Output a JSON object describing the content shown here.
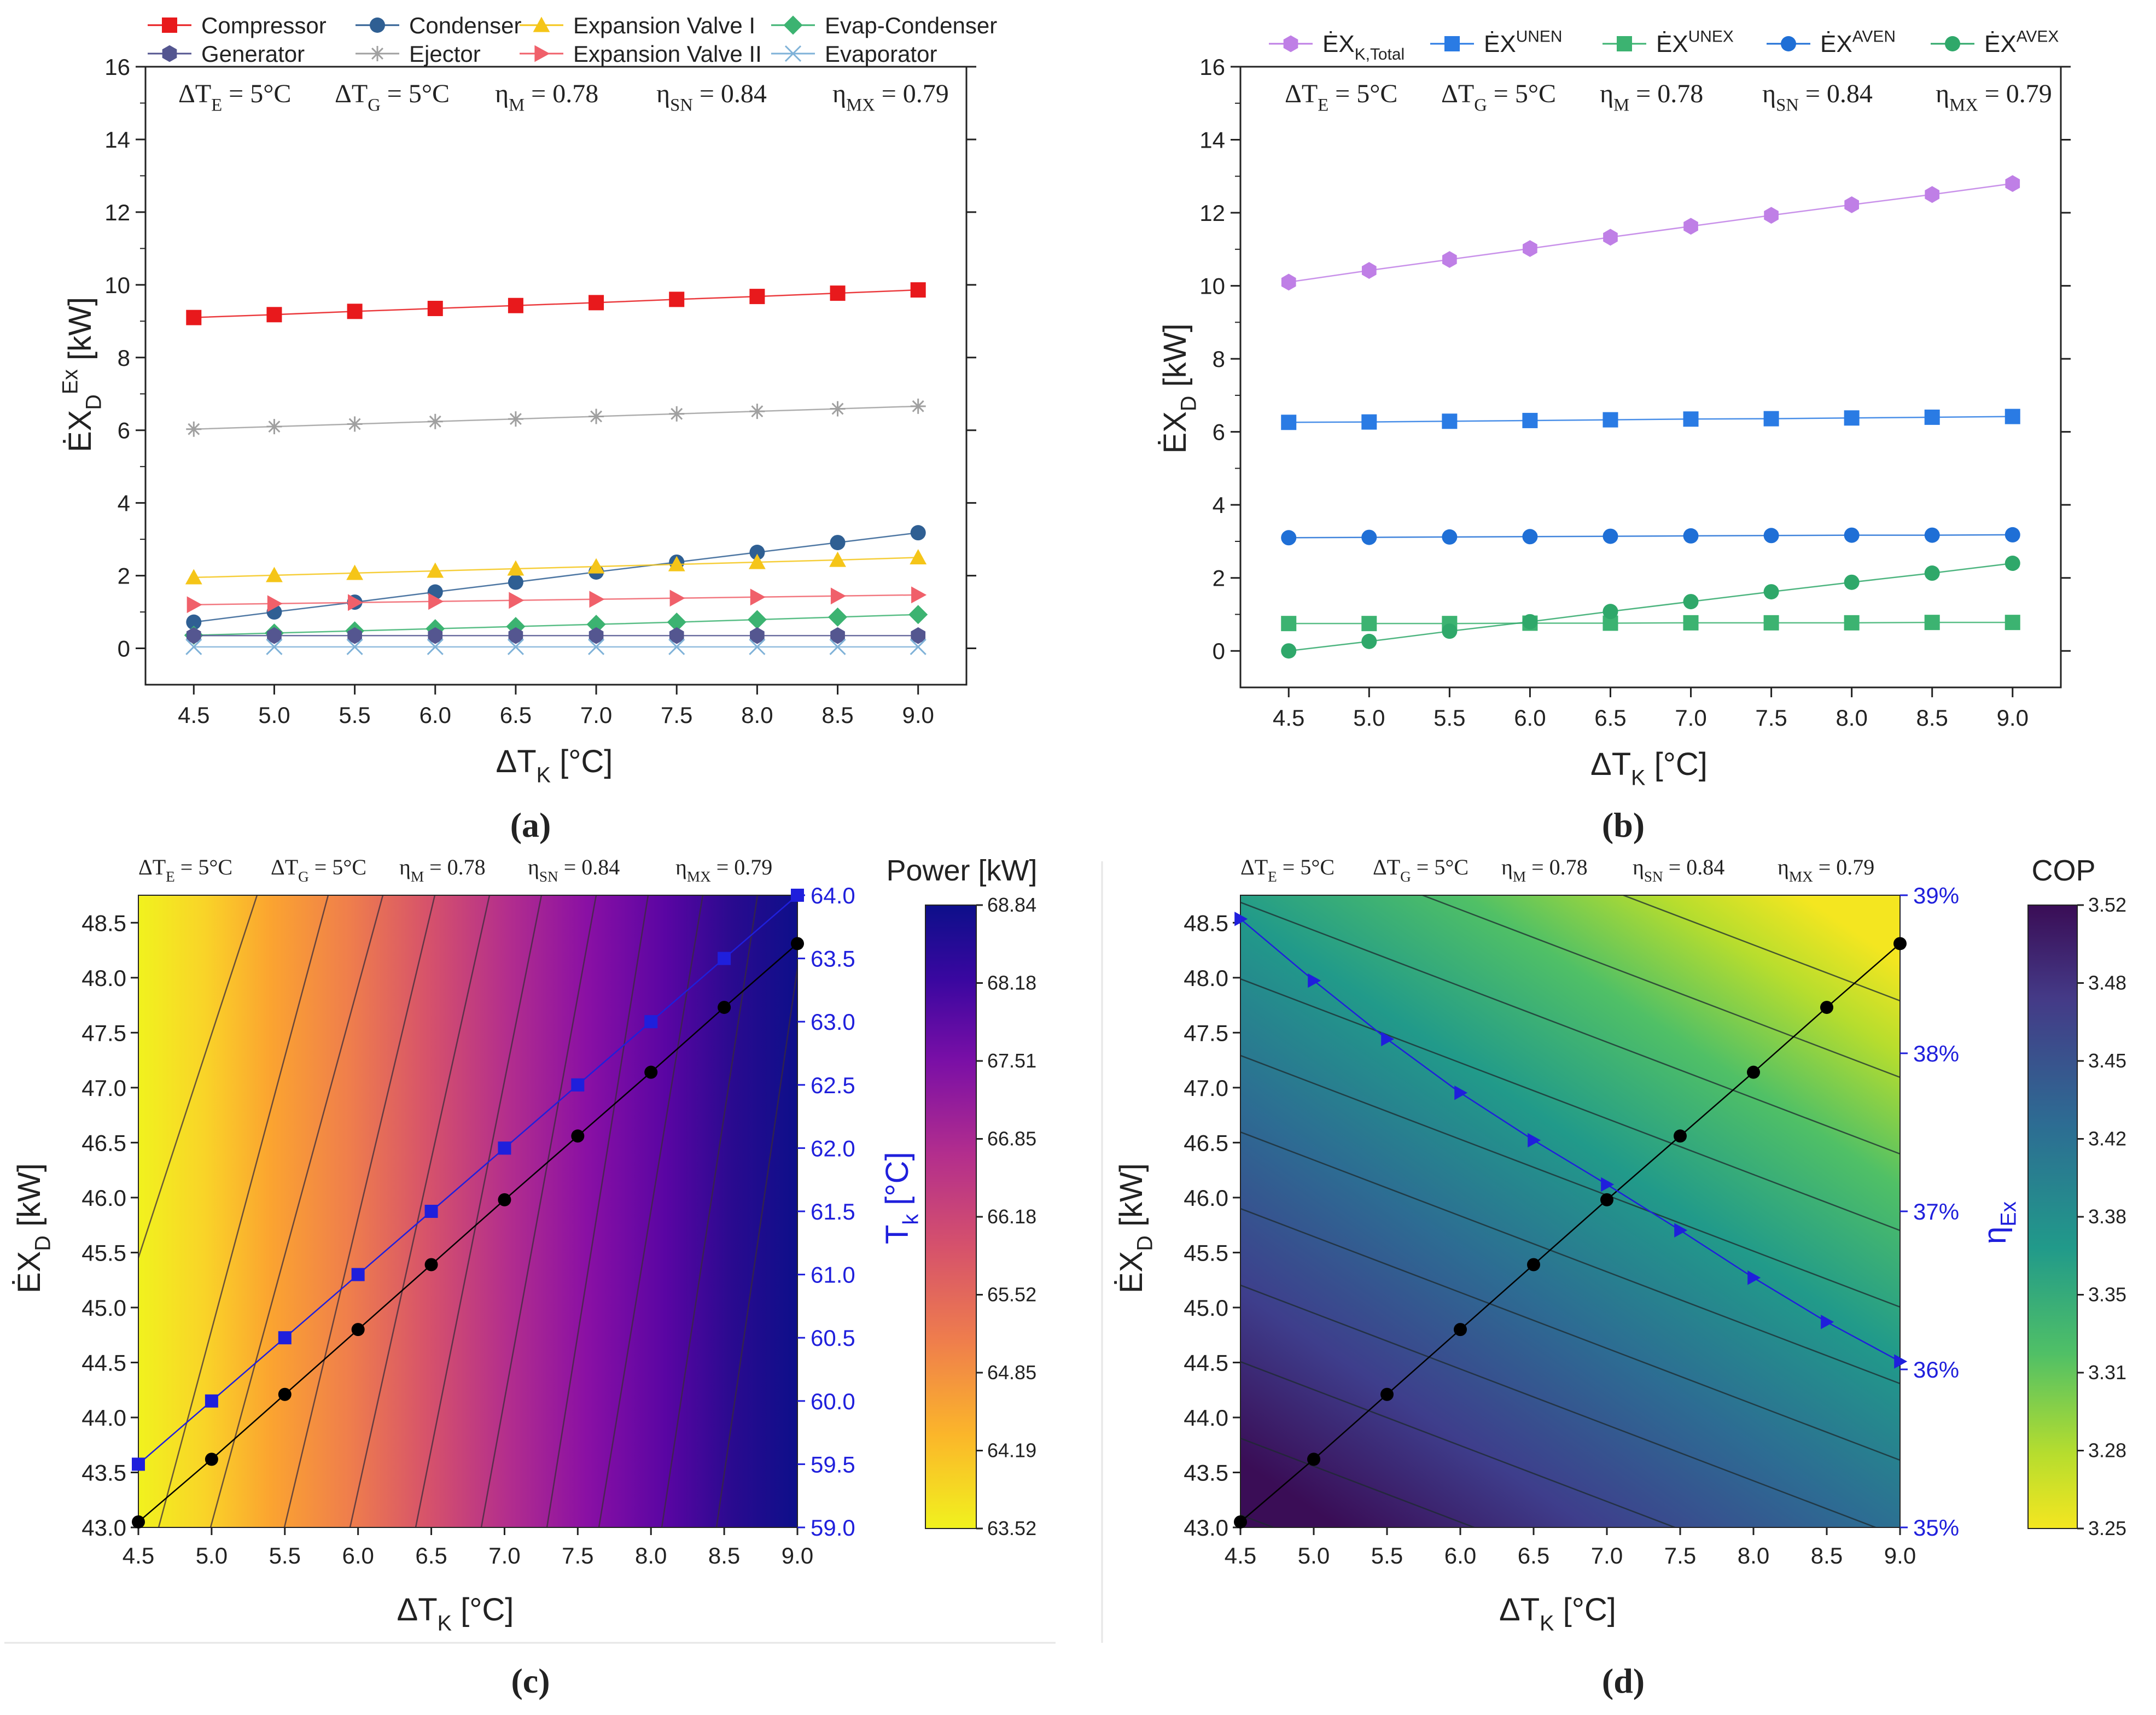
{
  "figure": {
    "panel_labels": [
      "(a)",
      "(b)",
      "(c)",
      "(d)"
    ],
    "x_values": [
      4.5,
      5.0,
      5.5,
      6.0,
      6.5,
      7.0,
      7.5,
      8.0,
      8.5,
      9.0
    ],
    "x_tick_labels": [
      "4.5",
      "5.0",
      "5.5",
      "6.0",
      "6.5",
      "7.0",
      "7.5",
      "8.0",
      "8.5",
      "9.0"
    ],
    "xlabel_main": "ΔT",
    "xlabel_sub": "K",
    "xlabel_unit": " [°C]",
    "params": [
      {
        "main": "ΔT",
        "sub": "E",
        "rest": " = 5°C"
      },
      {
        "main": "ΔT",
        "sub": "G",
        "rest": " = 5°C"
      },
      {
        "main": "η",
        "sub": "M",
        "rest": " = 0.78"
      },
      {
        "main": "η",
        "sub": "SN",
        "rest": " = 0.84"
      },
      {
        "main": "η",
        "sub": "MX",
        "rest": " = 0.79"
      }
    ]
  },
  "chart_data": [
    {
      "panel": "a",
      "type": "line",
      "ylabel": "ĖX_D^Ex [kW]",
      "ylabel_main": "ĖX",
      "ylabel_sub": "D",
      "ylabel_sup": "Ex",
      "ylabel_unit": " [kW]",
      "ylim": [
        -1,
        16
      ],
      "y_ticks": [
        0,
        2,
        4,
        6,
        8,
        10,
        12,
        14,
        16
      ],
      "y_tick_labels": [
        "0",
        "2",
        "4",
        "6",
        "8",
        "10",
        "12",
        "14",
        "16"
      ],
      "series": [
        {
          "name": "Compressor",
          "color": "#e8191c",
          "marker": "square",
          "values": [
            9.1,
            9.18,
            9.27,
            9.35,
            9.43,
            9.51,
            9.6,
            9.68,
            9.77,
            9.86
          ]
        },
        {
          "name": "Condenser",
          "color": "#2f5f93",
          "marker": "circle",
          "values": [
            0.72,
            1.0,
            1.27,
            1.55,
            1.82,
            2.1,
            2.37,
            2.64,
            2.91,
            3.18
          ]
        },
        {
          "name": "Expansion Valve I",
          "color": "#f5c518",
          "marker": "triangle-up",
          "values": [
            1.95,
            2.01,
            2.07,
            2.13,
            2.19,
            2.25,
            2.31,
            2.37,
            2.43,
            2.5
          ]
        },
        {
          "name": "Evap-Condenser",
          "color": "#3cb371",
          "marker": "diamond",
          "values": [
            0.36,
            0.42,
            0.48,
            0.54,
            0.6,
            0.66,
            0.72,
            0.79,
            0.86,
            0.93
          ]
        },
        {
          "name": "Generator",
          "color": "#545690",
          "marker": "hexagon",
          "values": [
            0.35,
            0.35,
            0.35,
            0.35,
            0.35,
            0.35,
            0.35,
            0.35,
            0.35,
            0.35
          ]
        },
        {
          "name": "Ejector",
          "color": "#a0a0a0",
          "marker": "asterisk",
          "values": [
            6.03,
            6.1,
            6.17,
            6.24,
            6.31,
            6.38,
            6.45,
            6.52,
            6.59,
            6.66
          ]
        },
        {
          "name": "Expansion Valve II",
          "color": "#f0606a",
          "marker": "triangle-right",
          "values": [
            1.2,
            1.23,
            1.26,
            1.29,
            1.32,
            1.35,
            1.38,
            1.41,
            1.44,
            1.47
          ]
        },
        {
          "name": "Evaporator",
          "color": "#7fb2d8",
          "marker": "x",
          "values": [
            0.04,
            0.04,
            0.04,
            0.04,
            0.04,
            0.04,
            0.04,
            0.04,
            0.04,
            0.04
          ]
        }
      ]
    },
    {
      "panel": "b",
      "type": "line",
      "ylabel": "ĖX_D [kW]",
      "ylabel_main": "ĖX",
      "ylabel_sub": "D",
      "ylabel_unit": " [kW]",
      "ylim": [
        -1,
        16
      ],
      "y_ticks": [
        0,
        2,
        4,
        6,
        8,
        10,
        12,
        14,
        16
      ],
      "y_tick_labels": [
        "0",
        "2",
        "4",
        "6",
        "8",
        "10",
        "12",
        "14",
        "16"
      ],
      "series": [
        {
          "name": "ĖX_K,Total",
          "main": "ĖX",
          "sub": "K,Total",
          "sup": "",
          "color": "#bf7fe6",
          "marker": "hexagon",
          "values": [
            10.1,
            10.42,
            10.72,
            11.02,
            11.33,
            11.63,
            11.93,
            12.22,
            12.5,
            12.8
          ]
        },
        {
          "name": "ĖX^UNEN",
          "main": "ĖX",
          "sub": "",
          "sup": "UNEN",
          "color": "#2a7be4",
          "marker": "square",
          "values": [
            6.26,
            6.27,
            6.29,
            6.31,
            6.33,
            6.35,
            6.36,
            6.38,
            6.4,
            6.42
          ]
        },
        {
          "name": "ĖX^UNEX",
          "main": "ĖX",
          "sub": "",
          "sup": "UNEX",
          "color": "#3cb371",
          "marker": "square",
          "values": [
            0.75,
            0.75,
            0.75,
            0.76,
            0.76,
            0.77,
            0.77,
            0.77,
            0.78,
            0.78
          ]
        },
        {
          "name": "ĖX^AVEN",
          "main": "ĖX",
          "sub": "",
          "sup": "AVEN",
          "color": "#1f6fd6",
          "marker": "circle",
          "values": [
            3.1,
            3.11,
            3.12,
            3.13,
            3.14,
            3.15,
            3.16,
            3.17,
            3.17,
            3.18
          ]
        },
        {
          "name": "ĖX^AVEX",
          "main": "ĖX",
          "sub": "",
          "sup": "AVEX",
          "color": "#2fa86a",
          "marker": "circle",
          "values": [
            0.0,
            0.26,
            0.54,
            0.8,
            1.08,
            1.35,
            1.62,
            1.88,
            2.13,
            2.4
          ]
        }
      ]
    },
    {
      "panel": "c",
      "type": "heatmap",
      "title": "Power [kW]",
      "ylabel_main": "ĖX",
      "ylabel_sub": "D",
      "ylabel_unit": " [kW]",
      "xlim": [
        4.5,
        9.0
      ],
      "ylim": [
        43.0,
        48.75
      ],
      "y_ticks": [
        43.0,
        43.5,
        44.0,
        44.5,
        45.0,
        45.5,
        46.0,
        46.5,
        47.0,
        47.5,
        48.0,
        48.5
      ],
      "y_tick_labels": [
        "43.0",
        "43.5",
        "44.0",
        "44.5",
        "45.0",
        "45.5",
        "46.0",
        "46.5",
        "47.0",
        "47.5",
        "48.0",
        "48.5"
      ],
      "colorbar_title": "Power [kW]",
      "colorbar_range": [
        63.52,
        68.84
      ],
      "colorbar_ticks": [
        "68.84",
        "68.18",
        "67.51",
        "66.85",
        "66.18",
        "65.52",
        "64.85",
        "64.19",
        "63.52"
      ],
      "right_axis": {
        "label_main": "T",
        "label_sub": "k",
        "label_unit": " [°C]",
        "color": "#1f1fdc",
        "lim": [
          59.0,
          64.0
        ],
        "ticks": [
          "64.0",
          "63.5",
          "63.0",
          "62.5",
          "62.0",
          "61.5",
          "61.0",
          "60.5",
          "60.0",
          "59.5",
          "59.0"
        ]
      },
      "series": [
        {
          "name": "ĖX_D",
          "axis": "left",
          "color": "#000000",
          "marker": "circle",
          "values": [
            43.05,
            43.62,
            44.21,
            44.8,
            45.39,
            45.98,
            46.56,
            47.14,
            47.73,
            48.31
          ]
        },
        {
          "name": "T_k",
          "axis": "right",
          "color": "#1f1fdc",
          "marker": "square",
          "values": [
            59.5,
            60.0,
            60.5,
            61.0,
            61.5,
            62.0,
            62.5,
            63.0,
            63.5,
            64.0
          ]
        }
      ]
    },
    {
      "panel": "d",
      "type": "heatmap",
      "title": "COP",
      "ylabel_main": "ĖX",
      "ylabel_sub": "D",
      "ylabel_unit": " [kW]",
      "xlim": [
        4.5,
        9.0
      ],
      "ylim": [
        43.0,
        48.75
      ],
      "y_ticks": [
        43.0,
        43.5,
        44.0,
        44.5,
        45.0,
        45.5,
        46.0,
        46.5,
        47.0,
        47.5,
        48.0,
        48.5
      ],
      "y_tick_labels": [
        "43.0",
        "43.5",
        "44.0",
        "44.5",
        "45.0",
        "45.5",
        "46.0",
        "46.5",
        "47.0",
        "47.5",
        "48.0",
        "48.5"
      ],
      "colorbar_title": "COP",
      "colorbar_range": [
        3.25,
        3.52
      ],
      "colorbar_ticks": [
        "3.52",
        "3.48",
        "3.45",
        "3.42",
        "3.38",
        "3.35",
        "3.31",
        "3.28",
        "3.25"
      ],
      "right_axis": {
        "label_main": "η",
        "label_sub": "Ex",
        "label_unit": "",
        "color": "#1f1fdc",
        "lim": [
          35,
          39
        ],
        "ticks": [
          "39%",
          "38%",
          "37%",
          "36%",
          "35%"
        ]
      },
      "series": [
        {
          "name": "ĖX_D",
          "axis": "left",
          "color": "#000000",
          "marker": "circle",
          "values": [
            43.05,
            43.62,
            44.21,
            44.8,
            45.39,
            45.98,
            46.56,
            47.14,
            47.73,
            48.31
          ]
        },
        {
          "name": "η_Ex",
          "axis": "right",
          "color": "#1f1fdc",
          "marker": "triangle-right",
          "values": [
            38.85,
            38.46,
            38.09,
            37.75,
            37.45,
            37.17,
            36.88,
            36.58,
            36.3,
            36.05
          ]
        }
      ]
    }
  ]
}
